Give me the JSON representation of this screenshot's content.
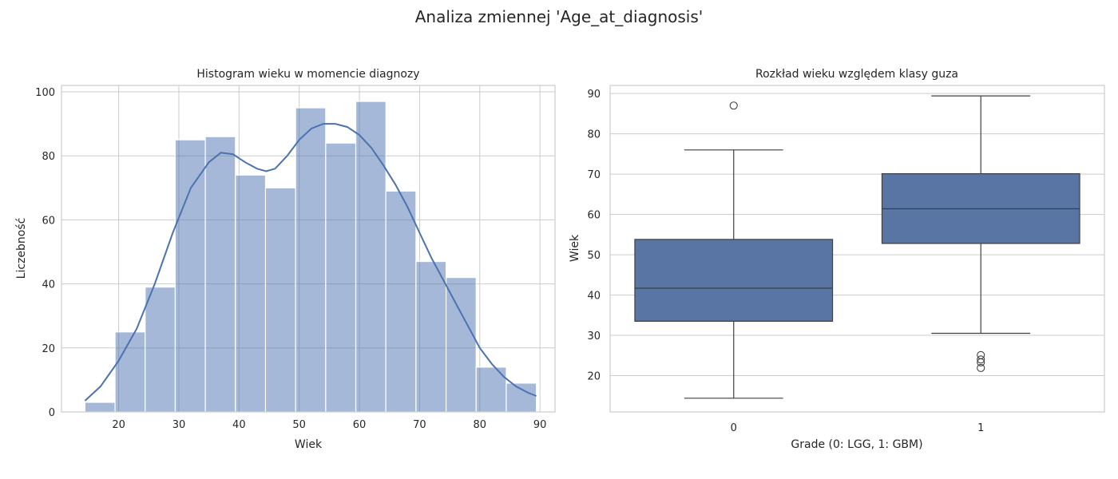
{
  "figure": {
    "suptitle": "Analiza zmiennej 'Age_at_diagnosis'"
  },
  "chart_data": [
    {
      "type": "bar",
      "subtype": "histogram-with-kde",
      "title": "Histogram wieku w momencie diagnozy",
      "xlabel": "Wiek",
      "ylabel": "Liczebność",
      "xlim": [
        10.5,
        92.5
      ],
      "ylim": [
        0,
        102
      ],
      "xticks": [
        20,
        30,
        40,
        50,
        60,
        70,
        80,
        90
      ],
      "yticks": [
        0,
        20,
        40,
        60,
        80,
        100
      ],
      "grid": true,
      "bar_color": "#4c72b0",
      "bar_opacity": 0.5,
      "line_color": "#4c72b0",
      "bins": [
        {
          "x0": 14.4,
          "x1": 19.4,
          "count": 3
        },
        {
          "x0": 19.4,
          "x1": 24.4,
          "count": 25
        },
        {
          "x0": 24.4,
          "x1": 29.4,
          "count": 39
        },
        {
          "x0": 29.4,
          "x1": 34.4,
          "count": 85
        },
        {
          "x0": 34.4,
          "x1": 39.4,
          "count": 86
        },
        {
          "x0": 39.4,
          "x1": 44.4,
          "count": 74
        },
        {
          "x0": 44.4,
          "x1": 49.4,
          "count": 70
        },
        {
          "x0": 49.4,
          "x1": 54.4,
          "count": 95
        },
        {
          "x0": 54.4,
          "x1": 59.4,
          "count": 84
        },
        {
          "x0": 59.4,
          "x1": 64.4,
          "count": 97
        },
        {
          "x0": 64.4,
          "x1": 69.4,
          "count": 69
        },
        {
          "x0": 69.4,
          "x1": 74.4,
          "count": 47
        },
        {
          "x0": 74.4,
          "x1": 79.4,
          "count": 42
        },
        {
          "x0": 79.4,
          "x1": 84.4,
          "count": 14
        },
        {
          "x0": 84.4,
          "x1": 89.4,
          "count": 9
        }
      ],
      "kde": {
        "x": [
          14.4,
          17,
          20,
          23,
          26,
          29,
          32,
          35,
          37,
          39,
          41,
          43,
          44.5,
          46,
          48,
          50,
          52,
          54,
          56,
          58,
          60,
          62,
          64,
          66,
          68,
          70,
          72,
          74,
          76,
          78,
          80,
          82,
          84,
          86,
          88,
          89.4
        ],
        "y": [
          3.5,
          8,
          16,
          26,
          40,
          56,
          70,
          78,
          81,
          80.5,
          78,
          76,
          75.2,
          76,
          80,
          85,
          88.5,
          90,
          90,
          89,
          86.5,
          82.5,
          77,
          71,
          64,
          56,
          48,
          41,
          34,
          27,
          20,
          15,
          11,
          8,
          6,
          5
        ]
      }
    },
    {
      "type": "box",
      "title": "Rozkład wieku względem klasy guza",
      "xlabel": "Grade (0: LGG, 1: GBM)",
      "ylabel": "Wiek",
      "ylim": [
        11,
        92
      ],
      "yticks": [
        20,
        30,
        40,
        50,
        60,
        70,
        80,
        90
      ],
      "grid": true,
      "box_color": "#5875a4",
      "line_color": "#3f3f3f",
      "boxes": [
        {
          "category": "0",
          "whisker_low": 14.4,
          "q1": 33.5,
          "median": 41.7,
          "q3": 53.8,
          "whisker_high": 76.0,
          "outliers": [
            87.0
          ]
        },
        {
          "category": "1",
          "whisker_low": 30.5,
          "q1": 52.8,
          "median": 61.4,
          "q3": 70.1,
          "whisker_high": 89.4,
          "outliers": [
            25.1,
            24.0,
            23.3,
            21.9
          ]
        }
      ]
    }
  ]
}
